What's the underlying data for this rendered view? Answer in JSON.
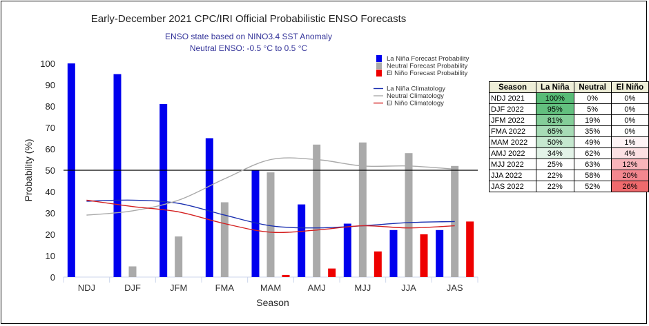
{
  "chart_data": {
    "type": "bar",
    "title": "Early-December 2021 CPC/IRI Official Probabilistic ENSO Forecasts",
    "subtitle": [
      "ENSO state based on NINO3.4 SST Anomaly",
      "Neutral ENSO: -0.5 °C to 0.5 °C"
    ],
    "xlabel": "Season",
    "ylabel": "Probability (%)",
    "ylim": [
      0,
      100
    ],
    "yticks": [
      0,
      10,
      20,
      30,
      40,
      50,
      60,
      70,
      80,
      90,
      100
    ],
    "reference_line": 50,
    "categories": [
      "NDJ",
      "DJF",
      "JFM",
      "FMA",
      "MAM",
      "AMJ",
      "MJJ",
      "JJA",
      "JAS"
    ],
    "series": [
      {
        "name": "La Niña Forecast Probability",
        "type": "bar",
        "color": "#0000ee",
        "values": [
          100,
          95,
          81,
          65,
          50,
          34,
          25,
          22,
          22
        ]
      },
      {
        "name": "Neutral Forecast Probability",
        "type": "bar",
        "color": "#aaaaaa",
        "values": [
          0,
          5,
          19,
          35,
          49,
          62,
          63,
          58,
          52
        ]
      },
      {
        "name": "El Niño Forecast Probability",
        "type": "bar",
        "color": "#ee0000",
        "values": [
          0,
          0,
          0,
          0,
          1,
          4,
          12,
          20,
          26
        ]
      },
      {
        "name": "La Niña Climatology",
        "type": "line",
        "color": "#1a2fb0",
        "values": [
          35.5,
          36,
          34.5,
          29,
          24,
          23,
          24,
          25.5,
          26
        ]
      },
      {
        "name": "Neutral Climatology",
        "type": "line",
        "color": "#aaaaaa",
        "values": [
          29,
          31,
          36,
          46,
          55,
          55,
          52,
          52,
          50.5
        ]
      },
      {
        "name": "El Niño Climatology",
        "type": "line",
        "color": "#d42020",
        "values": [
          36,
          33,
          30.5,
          25,
          21,
          22,
          24,
          23,
          24
        ]
      }
    ],
    "legend_position": "top-right",
    "grid": false
  },
  "table": {
    "headers": [
      "Season",
      "La Niña",
      "Neutral",
      "El Niño"
    ],
    "rows": [
      {
        "season": "NDJ 2021",
        "la_nina": "100%",
        "neutral": "0%",
        "el_nino": "0%",
        "la_bg": "#57bb76",
        "el_bg": "#ffffff"
      },
      {
        "season": "DJF 2022",
        "la_nina": "95%",
        "neutral": "5%",
        "el_nino": "0%",
        "la_bg": "#63c07f",
        "el_bg": "#ffffff"
      },
      {
        "season": "JFM 2022",
        "la_nina": "81%",
        "neutral": "19%",
        "el_nino": "0%",
        "la_bg": "#84ce99",
        "el_bg": "#ffffff"
      },
      {
        "season": "FMA 2022",
        "la_nina": "65%",
        "neutral": "35%",
        "el_nino": "0%",
        "la_bg": "#a7dcb6",
        "el_bg": "#ffffff"
      },
      {
        "season": "MAM 2022",
        "la_nina": "50%",
        "neutral": "49%",
        "el_nino": "1%",
        "la_bg": "#c5e8cf",
        "el_bg": "#fdf3f5"
      },
      {
        "season": "AMJ 2022",
        "la_nina": "34%",
        "neutral": "62%",
        "el_nino": "4%",
        "la_bg": "#e3f3e8",
        "el_bg": "#fce0e3"
      },
      {
        "season": "MJJ 2022",
        "la_nina": "25%",
        "neutral": "63%",
        "el_nino": "12%",
        "la_bg": "#ffffff",
        "el_bg": "#f8b4ba"
      },
      {
        "season": "JJA 2022",
        "la_nina": "22%",
        "neutral": "58%",
        "el_nino": "20%",
        "la_bg": "#ffffff",
        "el_bg": "#f3878f"
      },
      {
        "season": "JAS 2022",
        "la_nina": "22%",
        "neutral": "52%",
        "el_nino": "26%",
        "la_bg": "#ffffff",
        "el_bg": "#ef6a6d"
      }
    ]
  }
}
